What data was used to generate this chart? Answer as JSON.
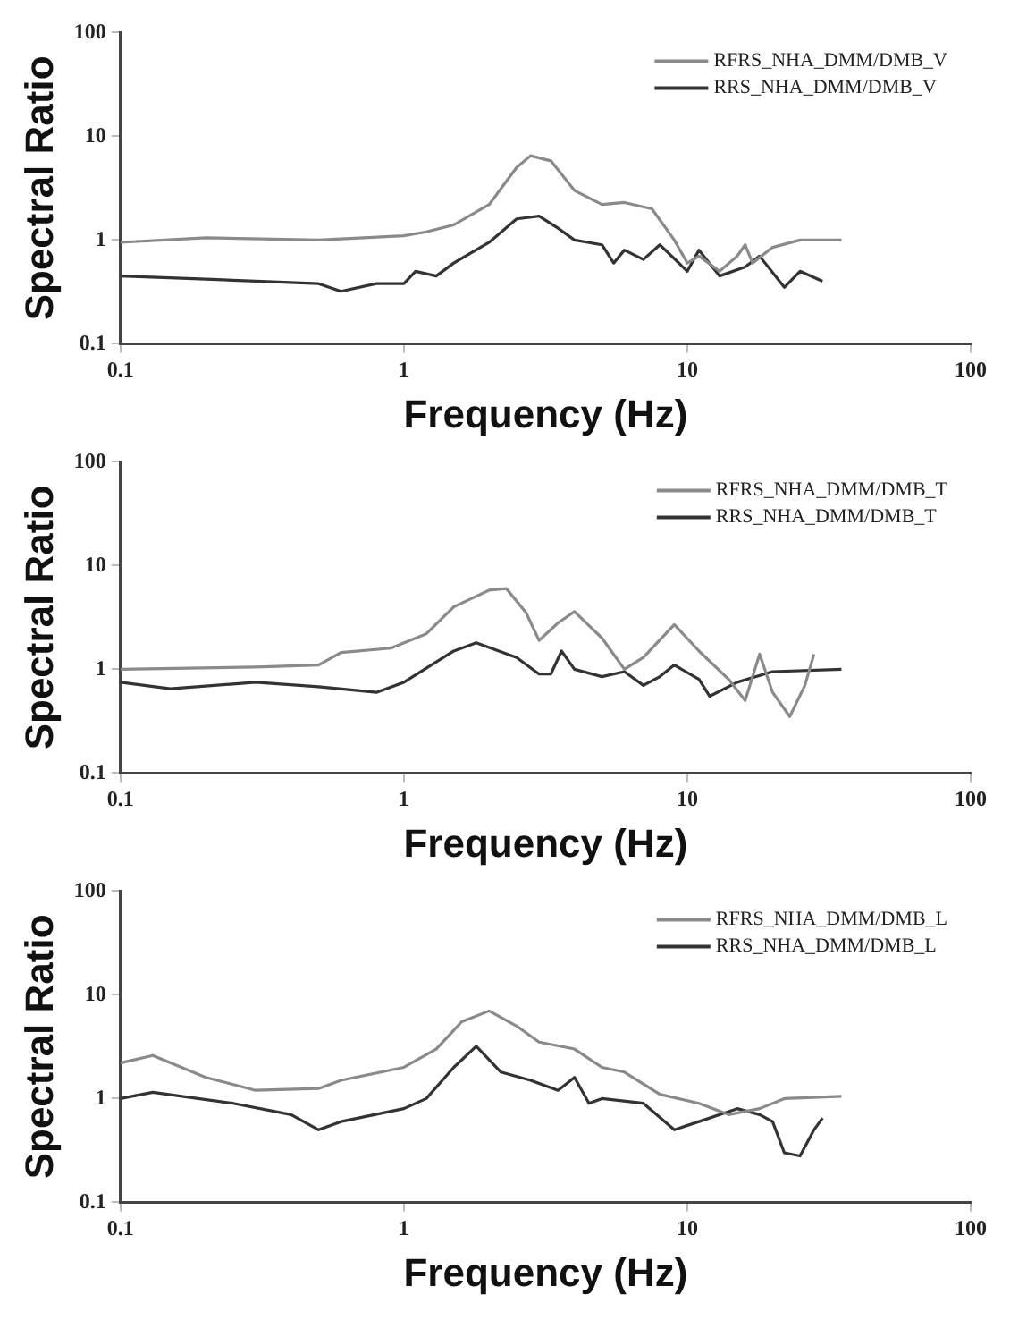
{
  "chart_data": [
    {
      "type": "line",
      "xlabel": "Frequency (Hz)",
      "ylabel": "Spectral Ratio",
      "log": "xy",
      "grid": false,
      "legend": "top right",
      "marker": "none",
      "line_style": "solid",
      "xlim": [
        0.1,
        100
      ],
      "ylim": [
        0.1,
        100
      ],
      "xticks": [
        0.1,
        1,
        10,
        100
      ],
      "yticks": [
        0.1,
        1,
        10,
        100
      ],
      "series": [
        {
          "name": "RFRS_NHA_DMM/DMB_V",
          "color": "#8a8a8a",
          "x": [
            0.1,
            0.2,
            0.5,
            1,
            1.2,
            1.5,
            2,
            2.5,
            2.8,
            3.3,
            4,
            5,
            6,
            7.5,
            9,
            10,
            11,
            13,
            15,
            16,
            17,
            20,
            25,
            35
          ],
          "values": [
            0.95,
            1.05,
            1.0,
            1.1,
            1.2,
            1.4,
            2.2,
            5,
            6.5,
            5.8,
            3,
            2.2,
            2.3,
            2,
            1,
            0.6,
            0.7,
            0.5,
            0.7,
            0.9,
            0.6,
            0.85,
            1,
            1
          ]
        },
        {
          "name": "RRS_NHA_DMM/DMB_V",
          "color": "#333333",
          "x": [
            0.1,
            0.2,
            0.5,
            0.6,
            0.8,
            1,
            1.1,
            1.3,
            1.5,
            2,
            2.5,
            3,
            3.5,
            4,
            5,
            5.5,
            6,
            7,
            8,
            10,
            11,
            13,
            16,
            18,
            22,
            25,
            30
          ],
          "values": [
            0.45,
            0.42,
            0.38,
            0.32,
            0.38,
            0.38,
            0.5,
            0.45,
            0.6,
            0.95,
            1.6,
            1.7,
            1.3,
            1,
            0.9,
            0.6,
            0.8,
            0.65,
            0.9,
            0.5,
            0.8,
            0.45,
            0.55,
            0.7,
            0.35,
            0.5,
            0.4
          ]
        }
      ]
    },
    {
      "type": "line",
      "xlabel": "Frequency (Hz)",
      "ylabel": "Spectral Ratio",
      "log": "xy",
      "grid": false,
      "legend": "top right",
      "marker": "none",
      "line_style": "solid",
      "xlim": [
        0.1,
        100
      ],
      "ylim": [
        0.1,
        100
      ],
      "xticks": [
        0.1,
        1,
        10,
        100
      ],
      "yticks": [
        0.1,
        1,
        10,
        100
      ],
      "series": [
        {
          "name": "RFRS_NHA_DMM/DMB_T",
          "color": "#8a8a8a",
          "x": [
            0.1,
            0.3,
            0.5,
            0.6,
            0.9,
            1.2,
            1.5,
            2,
            2.3,
            2.7,
            3,
            3.5,
            4,
            5,
            6,
            7,
            9,
            11,
            14,
            16,
            18,
            20,
            23,
            26,
            28
          ],
          "values": [
            1,
            1.05,
            1.1,
            1.45,
            1.6,
            2.2,
            4,
            5.8,
            6,
            3.5,
            1.9,
            2.8,
            3.6,
            2,
            1.0,
            1.3,
            2.7,
            1.5,
            0.8,
            0.5,
            1.4,
            0.6,
            0.35,
            0.7,
            1.4
          ]
        },
        {
          "name": "RRS_NHA_DMM/DMB_T",
          "color": "#333333",
          "x": [
            0.1,
            0.15,
            0.3,
            0.5,
            0.8,
            1,
            1.5,
            1.8,
            2.5,
            3,
            3.3,
            3.6,
            4,
            5,
            6,
            7,
            8,
            9,
            11,
            12,
            15,
            20,
            35
          ],
          "values": [
            0.75,
            0.65,
            0.75,
            0.68,
            0.6,
            0.75,
            1.5,
            1.8,
            1.3,
            0.9,
            0.9,
            1.5,
            1.0,
            0.85,
            0.95,
            0.7,
            0.85,
            1.1,
            0.8,
            0.55,
            0.75,
            0.95,
            1.0
          ]
        }
      ]
    },
    {
      "type": "line",
      "xlabel": "Frequency (Hz)",
      "ylabel": "Spectral Ratio",
      "log": "xy",
      "grid": false,
      "legend": "top right",
      "marker": "none",
      "line_style": "solid",
      "xlim": [
        0.1,
        100
      ],
      "ylim": [
        0.1,
        100
      ],
      "xticks": [
        0.1,
        1,
        10,
        100
      ],
      "yticks": [
        0.1,
        1,
        10,
        100
      ],
      "series": [
        {
          "name": "RFRS_NHA_DMM/DMB_L",
          "color": "#8a8a8a",
          "x": [
            0.1,
            0.13,
            0.2,
            0.3,
            0.5,
            0.6,
            1,
            1.3,
            1.6,
            2,
            2.5,
            3,
            4,
            5,
            6,
            8,
            11,
            14,
            18,
            22,
            35
          ],
          "values": [
            2.2,
            2.6,
            1.6,
            1.2,
            1.25,
            1.5,
            2,
            3,
            5.5,
            7,
            5,
            3.5,
            3,
            2,
            1.8,
            1.1,
            0.9,
            0.7,
            0.8,
            1.0,
            1.05
          ]
        },
        {
          "name": "RRS_NHA_DMM/DMB_L",
          "color": "#333333",
          "x": [
            0.1,
            0.13,
            0.25,
            0.4,
            0.5,
            0.6,
            1,
            1.2,
            1.5,
            1.8,
            2.2,
            2.8,
            3.5,
            4,
            4.5,
            5,
            7,
            9,
            11,
            15,
            18,
            20,
            22,
            25,
            28,
            30
          ],
          "values": [
            1.0,
            1.15,
            0.9,
            0.7,
            0.5,
            0.6,
            0.8,
            1.0,
            2,
            3.2,
            1.8,
            1.5,
            1.2,
            1.6,
            0.9,
            1.0,
            0.9,
            0.5,
            0.6,
            0.8,
            0.7,
            0.6,
            0.3,
            0.28,
            0.5,
            0.65
          ]
        }
      ]
    }
  ]
}
